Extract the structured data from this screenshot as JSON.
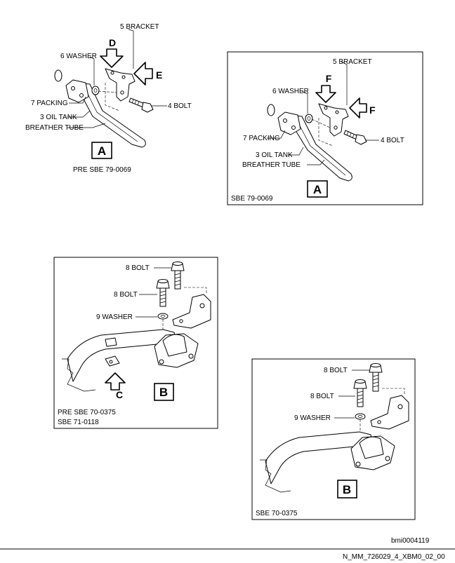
{
  "view_a_pre": {
    "bracket": "5 BRACKET",
    "washer": "6 WASHER",
    "packing": "7 PACKING",
    "bolt": "4 BOLT",
    "tube_line1": "3 OIL TANK",
    "tube_line2": "BREATHER TUBE",
    "arrow_top": "D",
    "arrow_side": "E",
    "view_letter": "A",
    "caption": "PRE SBE 79-0069"
  },
  "view_a_post": {
    "bracket": "5 BRACKET",
    "washer": "6 WASHER",
    "packing": "7 PACKING",
    "bolt": "4 BOLT",
    "tube_line1": "3 OIL TANK",
    "tube_line2": "BREATHER TUBE",
    "arrow_top": "F",
    "arrow_side": "F",
    "view_letter": "A",
    "caption": "SBE 79-0069"
  },
  "view_b_pre": {
    "bolt_upper": "8 BOLT",
    "bolt_lower": "8 BOLT",
    "washer": "9 WASHER",
    "arrow": "C",
    "view_letter": "B",
    "caption_line1": "PRE SBE 70-0375",
    "caption_line2": "SBE 71-0118"
  },
  "view_b_post": {
    "bolt_upper": "8 BOLT",
    "bolt_lower": "8 BOLT",
    "washer": "9 WASHER",
    "view_letter": "B",
    "caption": "SBE 70-0375"
  },
  "figure_id": "bmi0004119",
  "document_id": "N_MM_726029_4_XBM0_02_00"
}
